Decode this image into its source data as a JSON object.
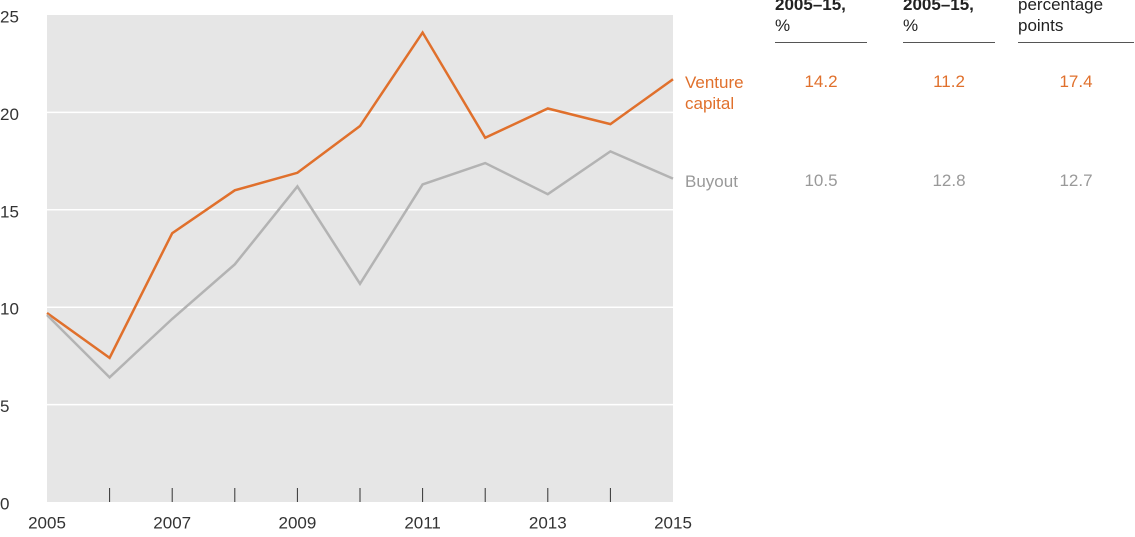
{
  "chart_data": {
    "type": "line",
    "x": [
      2005,
      2006,
      2007,
      2008,
      2009,
      2010,
      2011,
      2012,
      2013,
      2014,
      2015
    ],
    "xlim": [
      2005,
      2015
    ],
    "xticks": [
      2005,
      2007,
      2009,
      2011,
      2013,
      2015
    ],
    "ylim": [
      0,
      25
    ],
    "yticks": [
      0,
      5,
      10,
      15,
      20,
      25
    ],
    "grid": true,
    "series": [
      {
        "name": "Venture capital",
        "color": "#e0702c",
        "values": [
          9.7,
          7.4,
          13.8,
          16.0,
          16.9,
          19.3,
          24.1,
          18.7,
          20.2,
          19.4,
          21.7
        ]
      },
      {
        "name": "Buyout",
        "color": "#b3b3b3",
        "values": [
          9.6,
          6.4,
          9.4,
          12.2,
          16.2,
          11.2,
          16.3,
          17.4,
          15.8,
          18.0,
          16.6
        ]
      }
    ]
  },
  "table": {
    "headers": [
      {
        "bold": "2005–15,",
        "text": "%"
      },
      {
        "bold": "2005–15,",
        "text": "%"
      },
      {
        "text": "percentage points"
      }
    ],
    "rows": [
      [
        "14.2",
        "11.2",
        "17.4"
      ],
      [
        "10.5",
        "12.8",
        "12.7"
      ]
    ]
  }
}
